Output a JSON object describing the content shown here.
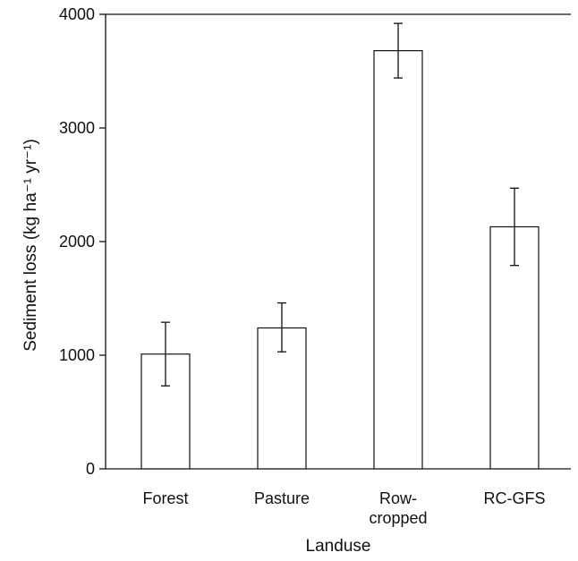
{
  "chart_data": {
    "type": "bar",
    "categories": [
      "Forest",
      "Pasture",
      "Row-cropped",
      "RC-GFS"
    ],
    "category_lines": [
      [
        "Forest"
      ],
      [
        "Pasture"
      ],
      [
        "Row-",
        "cropped"
      ],
      [
        "RC-GFS"
      ]
    ],
    "values": [
      1010,
      1240,
      3680,
      2130
    ],
    "error_low": [
      730,
      1030,
      3440,
      1790
    ],
    "error_high": [
      1290,
      1460,
      3920,
      2470
    ],
    "xlabel": "Landuse",
    "ylabel": "Sediment loss (kg ha⁻¹ yr⁻¹)",
    "ylim": [
      0,
      4000
    ],
    "yticks": [
      0,
      1000,
      2000,
      3000,
      4000
    ],
    "grid": false,
    "colors": {
      "bar_fill": "#ffffff",
      "stroke": "#111111"
    }
  }
}
